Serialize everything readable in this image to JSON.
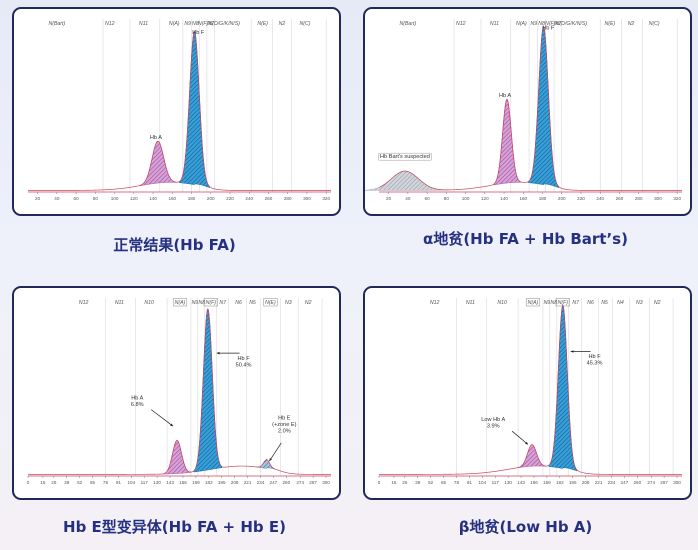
{
  "chart_data": [
    {
      "type": "line",
      "title": "",
      "caption": "正常结果(Hb FA)",
      "zones": [
        {
          "label": "N(Bart)",
          "boxed": false,
          "x": 40
        },
        {
          "label": "N12",
          "boxed": false,
          "x": 95
        },
        {
          "label": "N11",
          "boxed": false,
          "x": 130
        },
        {
          "label": "N(A)",
          "boxed": false,
          "x": 162
        },
        {
          "label": "N9",
          "boxed": false,
          "x": 176
        },
        {
          "label": "N8",
          "boxed": false,
          "x": 184
        },
        {
          "label": "N(F)",
          "boxed": false,
          "x": 192
        },
        {
          "label": "N7",
          "boxed": false,
          "x": 200
        },
        {
          "label": "N(D/G/K/N/S)",
          "boxed": false,
          "x": 214
        },
        {
          "label": "N(E)",
          "boxed": false,
          "x": 254
        },
        {
          "label": "N2",
          "boxed": false,
          "x": 274
        },
        {
          "label": "N(C)",
          "boxed": false,
          "x": 298
        }
      ],
      "zone_lines": [
        88,
        116,
        147,
        171,
        180,
        188,
        196,
        204,
        242,
        264,
        284,
        320
      ],
      "xticks": [
        20,
        40,
        60,
        80,
        100,
        120,
        140,
        160,
        180,
        200,
        220,
        240,
        260,
        280,
        300,
        320
      ],
      "xlim": [
        10,
        325
      ],
      "ylim": [
        0,
        100
      ],
      "peaks": [
        {
          "label": "Hb A",
          "value": "",
          "center": 145,
          "height": 26,
          "width": 6,
          "fill": "#d6a4d6",
          "hatch": "#a04ba0",
          "label_x": 143,
          "label_y": 33
        },
        {
          "label": "Hb F",
          "value": "",
          "center": 183,
          "height": 95,
          "width": 5,
          "fill": "#3aa0d8",
          "hatch": "#0d5f99",
          "label_x": 187,
          "label_y": 98
        }
      ],
      "annotations": []
    },
    {
      "type": "line",
      "title": "",
      "caption": "α地贫(Hb FA + Hb Bart’s)",
      "zones": [
        {
          "label": "N(Bart)",
          "boxed": false,
          "x": 40
        },
        {
          "label": "N12",
          "boxed": false,
          "x": 95
        },
        {
          "label": "N11",
          "boxed": false,
          "x": 130
        },
        {
          "label": "N(A)",
          "boxed": false,
          "x": 158
        },
        {
          "label": "N9",
          "boxed": false,
          "x": 171
        },
        {
          "label": "N8",
          "boxed": false,
          "x": 179
        },
        {
          "label": "N(F)",
          "boxed": false,
          "x": 188
        },
        {
          "label": "N7",
          "boxed": false,
          "x": 196
        },
        {
          "label": "N(D/G/K/N/S)",
          "boxed": false,
          "x": 210
        },
        {
          "label": "N(E)",
          "boxed": false,
          "x": 250
        },
        {
          "label": "N2",
          "boxed": false,
          "x": 272
        },
        {
          "label": "N(C)",
          "boxed": false,
          "x": 296
        }
      ],
      "zone_lines": [
        88,
        116,
        147,
        166,
        175,
        183,
        192,
        200,
        240,
        262,
        284,
        320
      ],
      "xticks": [
        20,
        40,
        60,
        80,
        100,
        120,
        140,
        160,
        180,
        200,
        220,
        240,
        260,
        280,
        300,
        320
      ],
      "xlim": [
        10,
        325
      ],
      "ylim": [
        0,
        100
      ],
      "peaks": [
        {
          "label": "Hb Bart's suspected",
          "value": "",
          "center": 37,
          "height": 12,
          "width": 14,
          "fill": "#d3d6dc",
          "hatch": "#9aa0aa",
          "label_x": 37,
          "label_y": 21
        },
        {
          "label": "Hb A",
          "value": "",
          "center": 143,
          "height": 52,
          "width": 4.5,
          "fill": "#d6a4d6",
          "hatch": "#a04ba0",
          "label_x": 141,
          "label_y": 59
        },
        {
          "label": "Hb F",
          "value": "",
          "center": 181,
          "height": 98,
          "width": 5,
          "fill": "#3aa0d8",
          "hatch": "#0d5f99",
          "label_x": 186,
          "label_y": 101
        }
      ],
      "annotations": []
    },
    {
      "type": "line",
      "title": "",
      "caption": "Hb E型变异体(Hb FA + Hb E)",
      "zones": [
        {
          "label": "N12",
          "boxed": false,
          "x": 56
        },
        {
          "label": "N11",
          "boxed": false,
          "x": 92
        },
        {
          "label": "N10",
          "boxed": false,
          "x": 122
        },
        {
          "label": "N(A)",
          "boxed": true,
          "x": 153
        },
        {
          "label": "N9",
          "boxed": false,
          "x": 168
        },
        {
          "label": "N8",
          "boxed": false,
          "x": 175
        },
        {
          "label": "N(F)",
          "boxed": true,
          "x": 184
        },
        {
          "label": "N7",
          "boxed": false,
          "x": 196
        },
        {
          "label": "N6",
          "boxed": false,
          "x": 212
        },
        {
          "label": "N5",
          "boxed": false,
          "x": 226
        },
        {
          "label": "N(E)",
          "boxed": true,
          "x": 244
        },
        {
          "label": "N3",
          "boxed": false,
          "x": 262
        },
        {
          "label": "N2",
          "boxed": false,
          "x": 282
        }
      ],
      "zone_lines": [
        78,
        108,
        140,
        164,
        171,
        178,
        190,
        202,
        220,
        234,
        254,
        272,
        296
      ],
      "xticks": [
        0,
        15,
        26,
        39,
        52,
        65,
        78,
        91,
        104,
        117,
        130,
        143,
        156,
        169,
        182,
        195,
        208,
        221,
        234,
        247,
        260,
        274,
        287,
        300
      ],
      "xlim": [
        0,
        305
      ],
      "ylim": [
        0,
        100
      ],
      "peaks": [
        {
          "label": "Hb A",
          "value": "6.8%",
          "center": 150,
          "height": 20,
          "width": 4.5,
          "fill": "#d6a4d6",
          "hatch": "#a04ba0",
          "label_x": 110,
          "label_y": 46
        },
        {
          "label": "Hb F",
          "value": "50.4%",
          "center": 181,
          "height": 97,
          "width": 4.5,
          "fill": "#3aa0d8",
          "hatch": "#0d5f99",
          "label_x": 217,
          "label_y": 70
        },
        {
          "label": "Hb E",
          "value": "2.0%",
          "center": 240,
          "height": 5,
          "width": 3,
          "fill": "#a8c6e0",
          "hatch": "#4b6d99",
          "label_x": 258,
          "label_y": 34,
          "sublabel": "(+zone E)"
        }
      ],
      "annotations": [
        {
          "for": "Hb A",
          "x1": 124,
          "y1": 40,
          "x2": 146,
          "y2": 30
        },
        {
          "for": "Hb F",
          "x1": 213,
          "y1": 74,
          "x2": 190,
          "y2": 74
        },
        {
          "for": "Hb E",
          "x1": 255,
          "y1": 20,
          "x2": 243,
          "y2": 9
        }
      ]
    },
    {
      "type": "line",
      "title": "",
      "caption": "β地贫(Low Hb A)",
      "zones": [
        {
          "label": "N12",
          "boxed": false,
          "x": 56
        },
        {
          "label": "N11",
          "boxed": false,
          "x": 92
        },
        {
          "label": "N10",
          "boxed": false,
          "x": 124
        },
        {
          "label": "N(A)",
          "boxed": true,
          "x": 155
        },
        {
          "label": "N9",
          "boxed": false,
          "x": 169
        },
        {
          "label": "N8",
          "boxed": false,
          "x": 176
        },
        {
          "label": "N(F)",
          "boxed": true,
          "x": 185
        },
        {
          "label": "N7",
          "boxed": false,
          "x": 198
        },
        {
          "label": "N6",
          "boxed": false,
          "x": 213
        },
        {
          "label": "N5",
          "boxed": false,
          "x": 227
        },
        {
          "label": "N4",
          "boxed": false,
          "x": 243
        },
        {
          "label": "N3",
          "boxed": false,
          "x": 262
        },
        {
          "label": "N2",
          "boxed": false,
          "x": 280
        }
      ],
      "zone_lines": [
        78,
        108,
        140,
        165,
        172,
        179,
        191,
        204,
        221,
        235,
        252,
        272,
        296
      ],
      "xticks": [
        0,
        15,
        26,
        39,
        52,
        65,
        78,
        91,
        104,
        117,
        130,
        143,
        156,
        169,
        182,
        195,
        208,
        221,
        234,
        247,
        260,
        274,
        287,
        300
      ],
      "xlim": [
        0,
        305
      ],
      "ylim": [
        0,
        100
      ],
      "peaks": [
        {
          "label": "Low Hb A",
          "value": "3.9%",
          "center": 154,
          "height": 13,
          "width": 4.5,
          "fill": "#d6a4d6",
          "hatch": "#a04ba0",
          "label_x": 115,
          "label_y": 33
        },
        {
          "label": "Hb F",
          "value": "45.3%",
          "center": 185,
          "height": 98,
          "width": 4.5,
          "fill": "#3aa0d8",
          "hatch": "#0d5f99",
          "label_x": 217,
          "label_y": 71
        }
      ],
      "annotations": [
        {
          "for": "Low Hb A",
          "x1": 134,
          "y1": 27,
          "x2": 150,
          "y2": 19
        },
        {
          "for": "Hb F",
          "x1": 213,
          "y1": 75,
          "x2": 193,
          "y2": 75
        }
      ]
    }
  ]
}
